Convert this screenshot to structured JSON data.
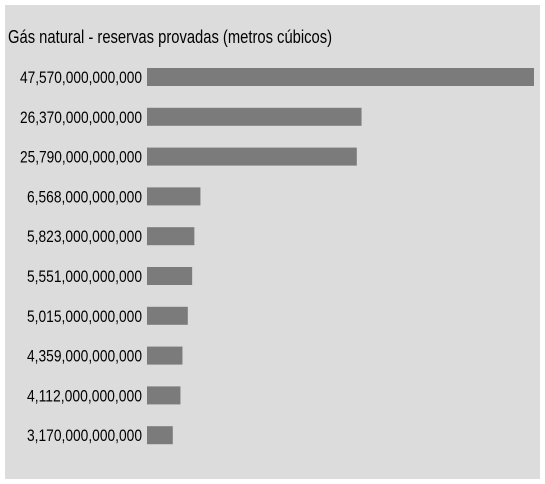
{
  "chart_data": {
    "type": "bar",
    "orientation": "horizontal",
    "title": "Gás natural - reservas provadas (metros cúbicos)",
    "xlabel": "",
    "ylabel": "",
    "grid": false,
    "legend": "none",
    "xlim": [
      0,
      47570000000000
    ],
    "categories": [
      "47,570,000,000,000",
      "26,370,000,000,000",
      "25,790,000,000,000",
      "6,568,000,000,000",
      "5,823,000,000,000",
      "5,551,000,000,000",
      "5,015,000,000,000",
      "4,359,000,000,000",
      "4,112,000,000,000",
      "3,170,000,000,000"
    ],
    "values": [
      47570000000000,
      26370000000000,
      25790000000000,
      6568000000000,
      5823000000000,
      5551000000000,
      5015000000000,
      4359000000000,
      4112000000000,
      3170000000000
    ],
    "colors": {
      "bar": "#7b7b7b",
      "background": "#dcdcdc",
      "text": "#000000"
    }
  }
}
